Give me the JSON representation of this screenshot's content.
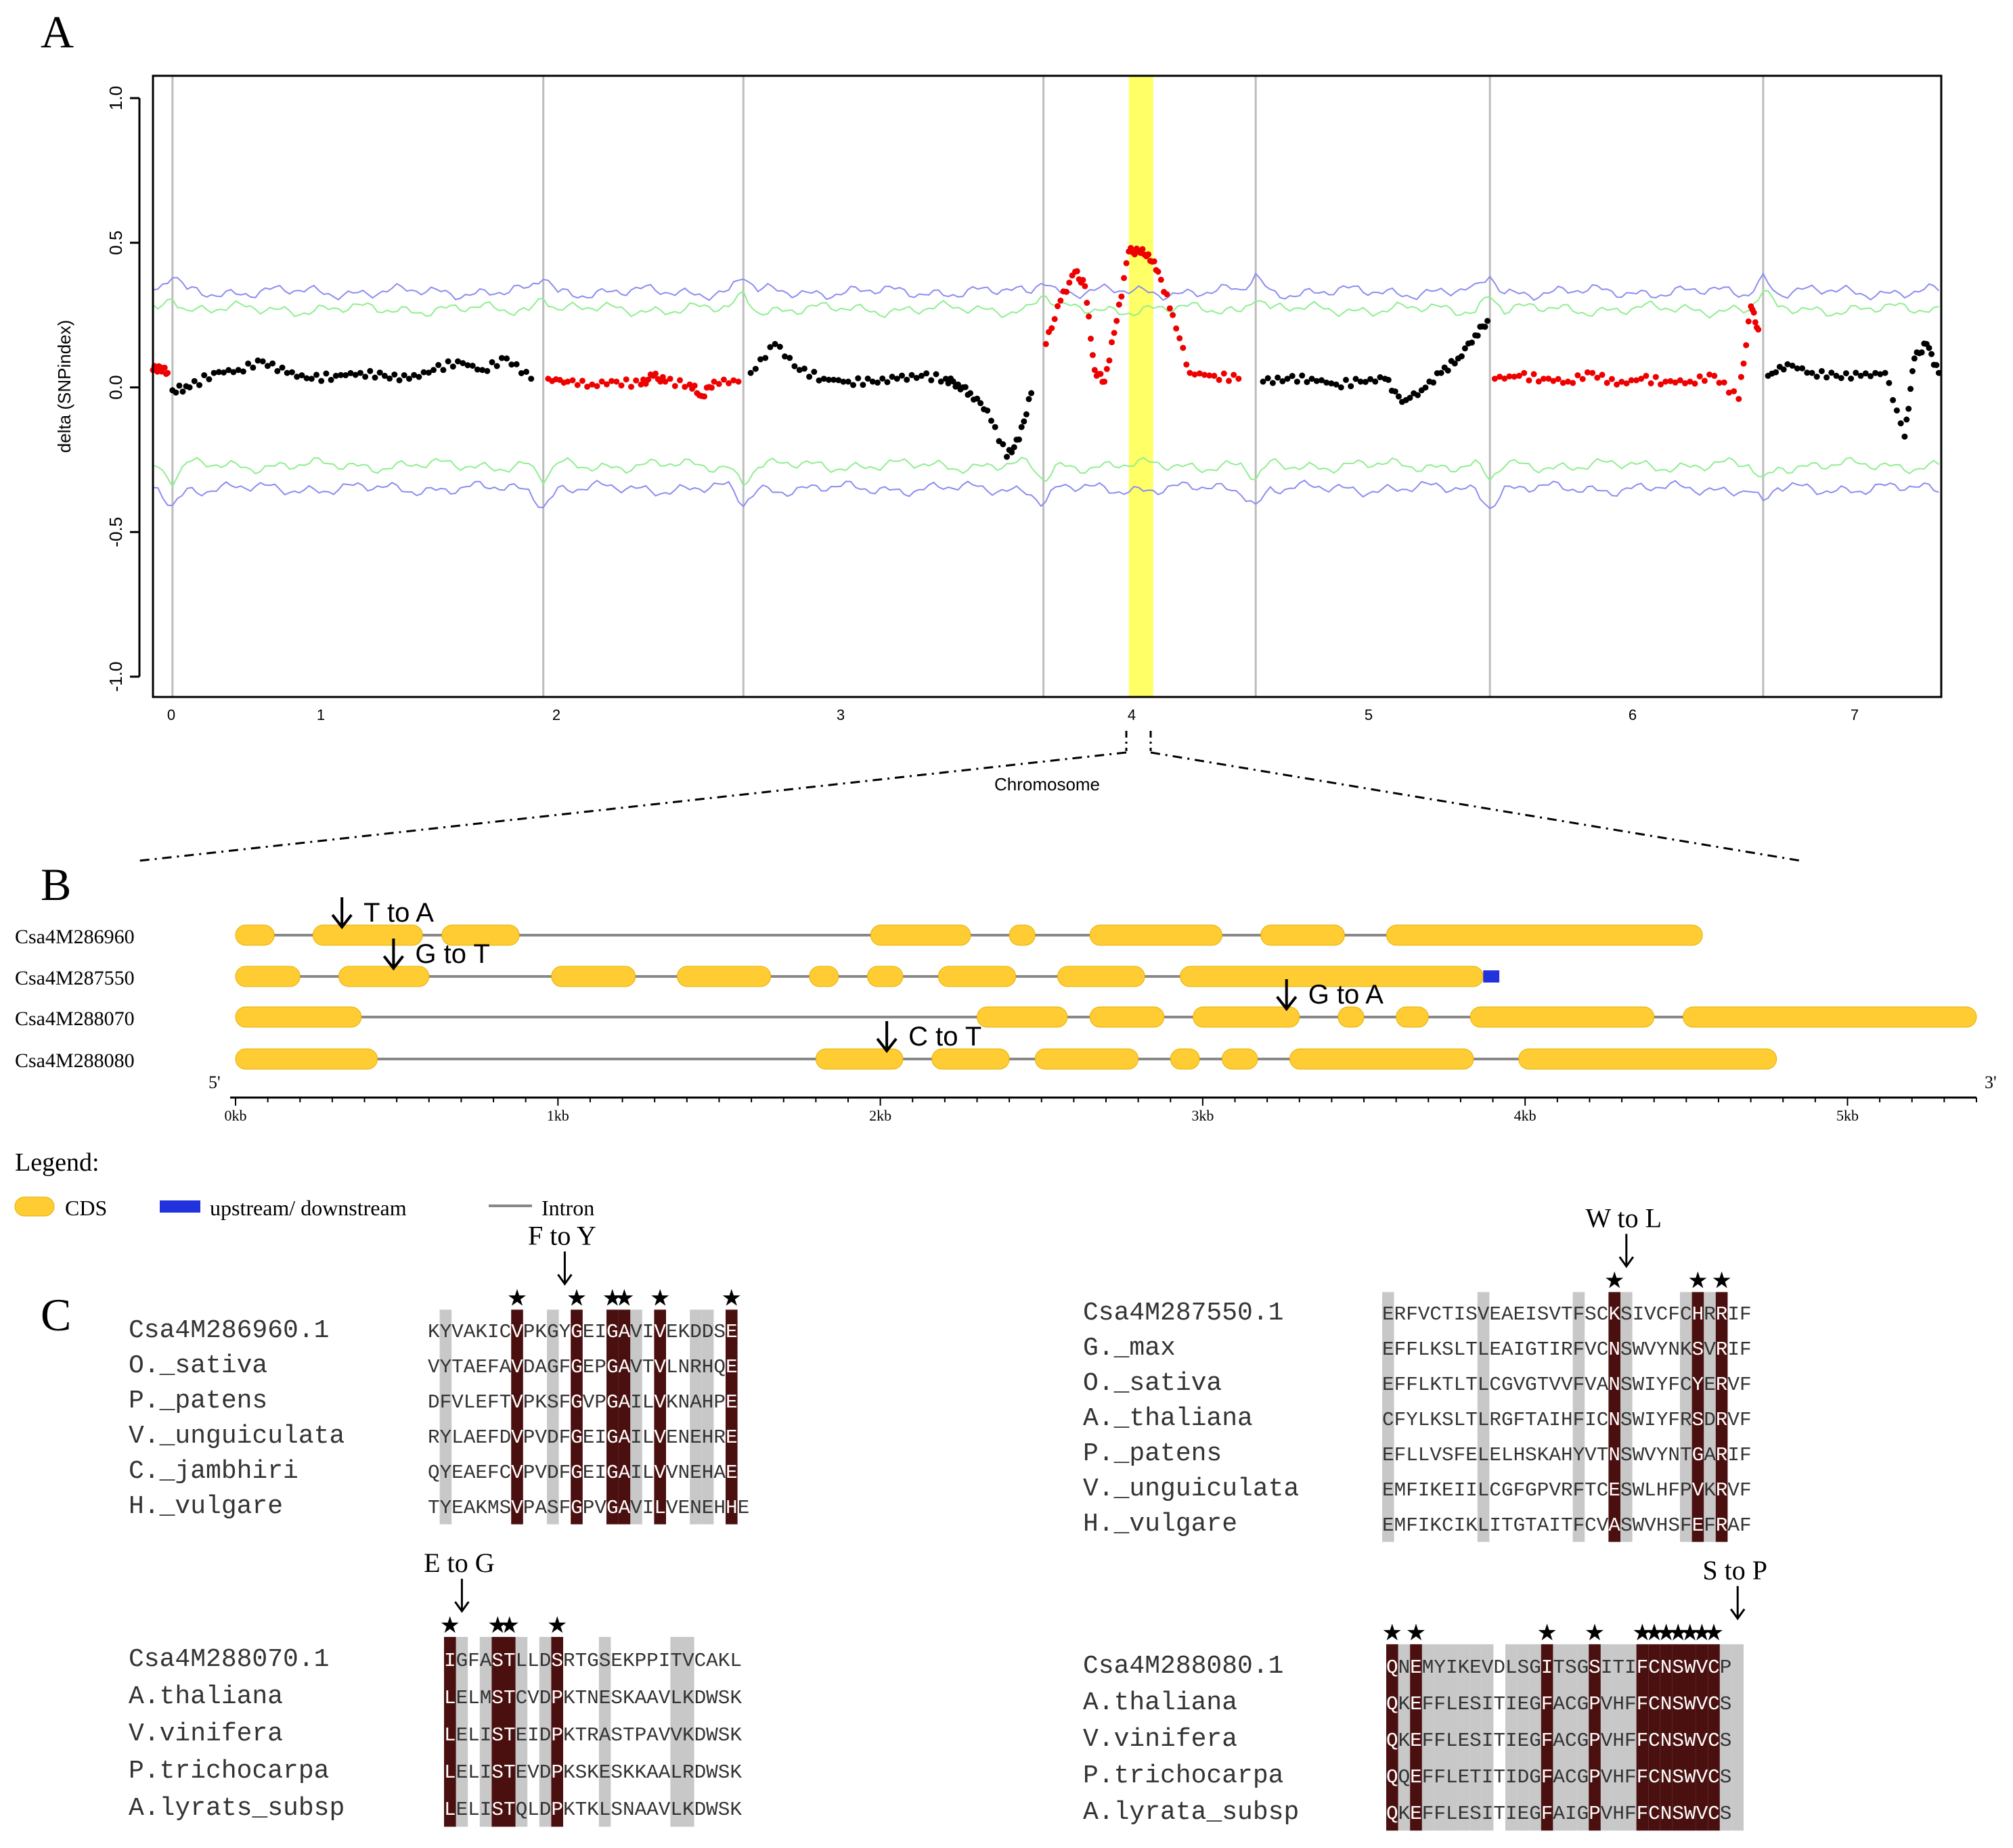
{
  "panel_labels": {
    "a": "A",
    "b": "B",
    "c": "C"
  },
  "chart_data": {
    "type": "scatter",
    "title": "",
    "xlabel": "Chromosome",
    "ylabel": "delta (SNPindex)",
    "ylim": [
      -1.05,
      1.07
    ],
    "yticks": [
      -1.0,
      -0.5,
      0.0,
      0.5,
      1.0
    ],
    "ytick_labels": [
      "-1.0",
      "-0.5",
      "0.0",
      "0.5",
      "1.0"
    ],
    "xlim": [
      0,
      7.33
    ],
    "xticks": [
      0,
      1,
      2,
      3,
      4,
      5,
      6,
      7
    ],
    "xtick_labels": [
      "0",
      "1",
      "2",
      "3",
      "4",
      "5",
      "6",
      "7"
    ],
    "chromosome_boundaries": [
      0.08,
      1.6,
      2.42,
      3.65,
      4.52,
      5.48,
      6.6
    ],
    "highlight_region": [
      4.0,
      4.1
    ],
    "threshold_95": {
      "color": "#90ee90",
      "upper_level": 0.27,
      "lower_level": -0.27
    },
    "threshold_99": {
      "color": "#8c8cf0",
      "upper_level": 0.33,
      "lower_level": -0.35
    },
    "series": [
      {
        "name": "chr1",
        "color": "#000000",
        "points": [
          [
            0.08,
            -0.01
          ],
          [
            0.15,
            0.0
          ],
          [
            0.25,
            0.05
          ],
          [
            0.35,
            0.06
          ],
          [
            0.45,
            0.09
          ],
          [
            0.55,
            0.05
          ],
          [
            0.65,
            0.03
          ],
          [
            0.75,
            0.04
          ],
          [
            0.85,
            0.05
          ],
          [
            0.95,
            0.04
          ],
          [
            1.05,
            0.03
          ],
          [
            1.15,
            0.06
          ],
          [
            1.25,
            0.09
          ],
          [
            1.35,
            0.06
          ],
          [
            1.45,
            0.1
          ],
          [
            1.55,
            0.03
          ]
        ]
      },
      {
        "name": "chr1-segment-red",
        "color": "#ee0000",
        "points": [
          [
            0.0,
            0.06
          ],
          [
            0.03,
            0.07
          ],
          [
            0.06,
            0.05
          ]
        ]
      },
      {
        "name": "chr2",
        "color": "#ee0000",
        "points": [
          [
            1.62,
            0.03
          ],
          [
            1.7,
            0.02
          ],
          [
            1.8,
            0.01
          ],
          [
            1.9,
            0.02
          ],
          [
            2.0,
            0.01
          ],
          [
            2.05,
            0.04
          ],
          [
            2.1,
            0.02
          ],
          [
            2.2,
            0.01
          ],
          [
            2.25,
            -0.03
          ],
          [
            2.3,
            0.02
          ],
          [
            2.4,
            0.02
          ]
        ]
      },
      {
        "name": "chr3",
        "color": "#000000",
        "points": [
          [
            2.45,
            0.05
          ],
          [
            2.55,
            0.15
          ],
          [
            2.65,
            0.06
          ],
          [
            2.75,
            0.03
          ],
          [
            2.85,
            0.02
          ],
          [
            2.95,
            0.02
          ],
          [
            3.05,
            0.03
          ],
          [
            3.15,
            0.04
          ],
          [
            3.25,
            0.03
          ],
          [
            3.3,
            0.01
          ],
          [
            3.35,
            -0.02
          ],
          [
            3.42,
            -0.08
          ],
          [
            3.5,
            -0.24
          ],
          [
            3.55,
            -0.18
          ],
          [
            3.6,
            -0.02
          ]
        ]
      },
      {
        "name": "chr4",
        "color": "#ee0000",
        "points": [
          [
            3.66,
            0.15
          ],
          [
            3.72,
            0.3
          ],
          [
            3.78,
            0.4
          ],
          [
            3.82,
            0.35
          ],
          [
            3.86,
            0.06
          ],
          [
            3.9,
            0.02
          ],
          [
            3.95,
            0.23
          ],
          [
            4.0,
            0.47
          ],
          [
            4.04,
            0.47
          ],
          [
            4.08,
            0.46
          ],
          [
            4.12,
            0.4
          ],
          [
            4.18,
            0.25
          ],
          [
            4.25,
            0.05
          ],
          [
            4.35,
            0.04
          ],
          [
            4.45,
            0.03
          ]
        ]
      },
      {
        "name": "chr5",
        "color": "#000000",
        "points": [
          [
            4.55,
            0.02
          ],
          [
            4.65,
            0.03
          ],
          [
            4.75,
            0.03
          ],
          [
            4.85,
            0.01
          ],
          [
            4.95,
            0.02
          ],
          [
            5.05,
            0.03
          ],
          [
            5.12,
            -0.05
          ],
          [
            5.2,
            -0.01
          ],
          [
            5.28,
            0.05
          ],
          [
            5.35,
            0.1
          ],
          [
            5.42,
            0.18
          ],
          [
            5.47,
            0.23
          ]
        ]
      },
      {
        "name": "chr6",
        "color": "#ee0000",
        "points": [
          [
            5.5,
            0.03
          ],
          [
            5.6,
            0.04
          ],
          [
            5.7,
            0.03
          ],
          [
            5.8,
            0.02
          ],
          [
            5.9,
            0.05
          ],
          [
            6.0,
            0.01
          ],
          [
            6.1,
            0.03
          ],
          [
            6.2,
            0.02
          ],
          [
            6.3,
            0.02
          ],
          [
            6.4,
            0.04
          ],
          [
            6.5,
            -0.04
          ],
          [
            6.55,
            0.28
          ],
          [
            6.58,
            0.2
          ]
        ]
      },
      {
        "name": "chr7",
        "color": "#000000",
        "points": [
          [
            6.62,
            0.04
          ],
          [
            6.7,
            0.08
          ],
          [
            6.8,
            0.05
          ],
          [
            6.9,
            0.04
          ],
          [
            7.0,
            0.04
          ],
          [
            7.1,
            0.05
          ],
          [
            7.18,
            -0.17
          ],
          [
            7.22,
            0.1
          ],
          [
            7.27,
            0.15
          ],
          [
            7.32,
            0.05
          ]
        ]
      }
    ]
  },
  "gene_structure": {
    "axis_labels": [
      "0kb",
      "1kb",
      "2kb",
      "3kb",
      "4kb",
      "5kb"
    ],
    "axis_range_kb": [
      0,
      5.4
    ],
    "five_prime": "5'",
    "three_prime": "3'",
    "genes": [
      {
        "name": "Csa4M286960",
        "span_kb": [
          0,
          4.55
        ],
        "exons_kb": [
          [
            0,
            0.12
          ],
          [
            0.24,
            0.58
          ],
          [
            0.64,
            0.88
          ],
          [
            1.97,
            2.28
          ],
          [
            2.4,
            2.48
          ],
          [
            2.65,
            3.06
          ],
          [
            3.18,
            3.44
          ],
          [
            3.57,
            4.55
          ]
        ],
        "mutation": {
          "label": "T to A",
          "pos_kb": 0.33
        }
      },
      {
        "name": "Csa4M287550",
        "span_kb": [
          0,
          3.9
        ],
        "exons_kb": [
          [
            0,
            0.2
          ],
          [
            0.32,
            0.6
          ],
          [
            0.98,
            1.24
          ],
          [
            1.37,
            1.66
          ],
          [
            1.78,
            1.87
          ],
          [
            1.96,
            2.07
          ],
          [
            2.18,
            2.42
          ],
          [
            2.55,
            2.82
          ],
          [
            2.93,
            3.87
          ]
        ],
        "utr_kb": [
          3.87,
          3.92
        ],
        "mutation": {
          "label": "G to T",
          "pos_kb": 0.49
        }
      },
      {
        "name": "Csa4M288070",
        "span_kb": [
          0,
          5.4
        ],
        "exons_kb": [
          [
            0,
            0.39
          ],
          [
            2.3,
            2.58
          ],
          [
            2.65,
            2.88
          ],
          [
            2.97,
            3.3
          ],
          [
            3.42,
            3.5
          ],
          [
            3.6,
            3.7
          ],
          [
            3.83,
            4.4
          ],
          [
            4.49,
            5.4
          ]
        ],
        "mutation": {
          "label": "G to A",
          "pos_kb": 3.26
        }
      },
      {
        "name": "Csa4M288080",
        "span_kb": [
          0,
          4.78
        ],
        "exons_kb": [
          [
            0,
            0.44
          ],
          [
            1.8,
            2.07
          ],
          [
            2.16,
            2.4
          ],
          [
            2.48,
            2.8
          ],
          [
            2.9,
            2.99
          ],
          [
            3.06,
            3.17
          ],
          [
            3.27,
            3.84
          ],
          [
            3.98,
            4.78
          ]
        ],
        "mutation": {
          "label": "C to T",
          "pos_kb": 2.02
        }
      }
    ]
  },
  "legend": {
    "title": "Legend:",
    "cds": "CDS",
    "updown": "upstream/ downstream",
    "intron": "Intron",
    "cds_color": "#ffcc33",
    "utr_color": "#2233dd",
    "intron_color": "#888888"
  },
  "alignments": [
    {
      "id": "aln1",
      "mutation": "F to Y",
      "mutation_col": 11,
      "star_cols": [
        7,
        12,
        15,
        16,
        19,
        25
      ],
      "dark_cols": [
        7,
        12,
        15,
        16,
        19,
        25
      ],
      "gray_cols": [
        1,
        10,
        17,
        22,
        23
      ],
      "rows": [
        {
          "name": "Csa4M286960.1",
          "seq": "KYVAKICVPKGYGEIGAVIVEKDDSE"
        },
        {
          "name": "O._sativa",
          "seq": "VYTAEFAVDAGFGEPGAVTVLNRHQE"
        },
        {
          "name": "P._patens",
          "seq": "DFVLEFTVPKSFGVPGAILVKNAHPE"
        },
        {
          "name": "V._unguiculata",
          "seq": "RYLAEFDVPVDFGEIGAILVENEHRE"
        },
        {
          "name": "C._jambhiri",
          "seq": "QYEAEFCVPVDFGEIGAILVVNEHAE"
        },
        {
          "name": "H._vulgare",
          "seq": "TYEAKMSVPASFGPVGAVILVENEHHE"
        }
      ]
    },
    {
      "id": "aln2",
      "mutation": "W to L",
      "mutation_col": 20,
      "star_cols": [
        19,
        26,
        28
      ],
      "dark_cols": [
        19,
        26,
        28
      ],
      "gray_cols": [
        0,
        8,
        16,
        20,
        25,
        27
      ],
      "rows": [
        {
          "name": "Csa4M287550.1",
          "seq": "ERFVCTISVEAEISVTFSCKSIVCFCHRRIF"
        },
        {
          "name": "G._max",
          "seq": "EFFLKSLTLEAIGTIRFVCNSWVYNKSVRIF"
        },
        {
          "name": "O._sativa",
          "seq": "EFFLKTLTLCGVGTVVFVANSWIYFCYERVF"
        },
        {
          "name": "A._thaliana",
          "seq": "CFYLKSLTLRGFTAIHFICNSWIYFRSDRVF"
        },
        {
          "name": "P._patens",
          "seq": "EFLLVSFELELHSKAHYVTNSWVYNTGARIF"
        },
        {
          "name": "V._unguiculata",
          "seq": "EMFIKEIILCGFGPVRFTCESWLHFPVKRVF"
        },
        {
          "name": "H._vulgare",
          "seq": "EMFIKCIKLITGTAITFCVASWVHSFEFRAF"
        }
      ]
    },
    {
      "id": "aln3",
      "mutation": "E to G",
      "mutation_col": 1,
      "star_cols": [
        0,
        4,
        5,
        9
      ],
      "dark_cols": [
        0,
        4,
        5,
        9
      ],
      "gray_cols": [
        1,
        3,
        6,
        8,
        13,
        19,
        20
      ],
      "rows": [
        {
          "name": "Csa4M288070.1",
          "seq": "IGFASTLLDSRTGSEKPPITVCAKL"
        },
        {
          "name": "A.thaliana",
          "seq": "LELMSTCVDPKTNESKAAVLKDWSK"
        },
        {
          "name": "V.vinifera",
          "seq": "LELISTEIDPKTRASTPAVVKDWSK"
        },
        {
          "name": "P.trichocarpa",
          "seq": "LELISTEVDPKSKESKKAALRDWSK"
        },
        {
          "name": "A.lyrats_subsp",
          "seq": "LELISTQLDPKTKLSNAAVLKDWSK"
        }
      ]
    },
    {
      "id": "aln4",
      "mutation": "S to P",
      "mutation_col": 29,
      "star_cols": [
        0,
        2,
        13,
        17,
        21,
        22,
        23,
        24,
        25,
        26,
        27
      ],
      "dark_cols": [
        0,
        2,
        13,
        17,
        21,
        22,
        23,
        24,
        25,
        26,
        27
      ],
      "gray_cols": [
        1,
        3,
        4,
        5,
        6,
        7,
        8,
        10,
        11,
        12,
        14,
        15,
        16,
        18,
        19,
        20,
        28,
        29
      ],
      "rows": [
        {
          "name": "Csa4M288080.1",
          "seq": "QNEMYIKEVDLSGITSGSITIFCNSWVCP"
        },
        {
          "name": "A.thaliana",
          "seq": "QKEFFLESITIEGFACGPVHFFCNSWVCS"
        },
        {
          "name": "V.vinifera",
          "seq": "QKEFFLESITIEGFACGPVHFFCNSWVCS"
        },
        {
          "name": "P.trichocarpa",
          "seq": "QQEFFLETITIDGFACGPVHFFCNSWVCS"
        },
        {
          "name": "A.lyrata_subsp",
          "seq": "QKEFFLESITIEGFAIGPVHFFCNSWVCS"
        }
      ]
    }
  ]
}
